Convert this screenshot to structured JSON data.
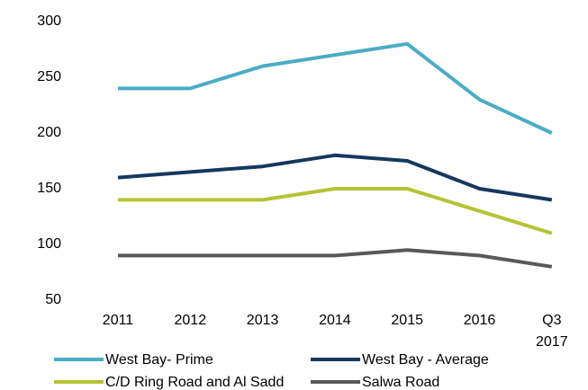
{
  "chart_data": {
    "type": "line",
    "categories": [
      "2011",
      "2012",
      "2013",
      "2014",
      "2015",
      "2016",
      "Q3 2017"
    ],
    "series": [
      {
        "name": "West Bay- Prime",
        "color": "#4bacc6",
        "values": [
          240,
          240,
          260,
          270,
          280,
          230,
          200
        ]
      },
      {
        "name": "West Bay - Average",
        "color": "#17375e",
        "values": [
          160,
          165,
          170,
          180,
          175,
          150,
          140
        ]
      },
      {
        "name": "C/D Ring Road and Al Sadd",
        "color": "#b5c334",
        "values": [
          140,
          140,
          140,
          150,
          150,
          130,
          110
        ]
      },
      {
        "name": "Salwa Road",
        "color": "#595959",
        "values": [
          90,
          90,
          90,
          90,
          95,
          90,
          80
        ]
      }
    ],
    "ylim": [
      50,
      300
    ],
    "yticks": [
      50,
      100,
      150,
      200,
      250,
      300
    ],
    "grid": false
  }
}
